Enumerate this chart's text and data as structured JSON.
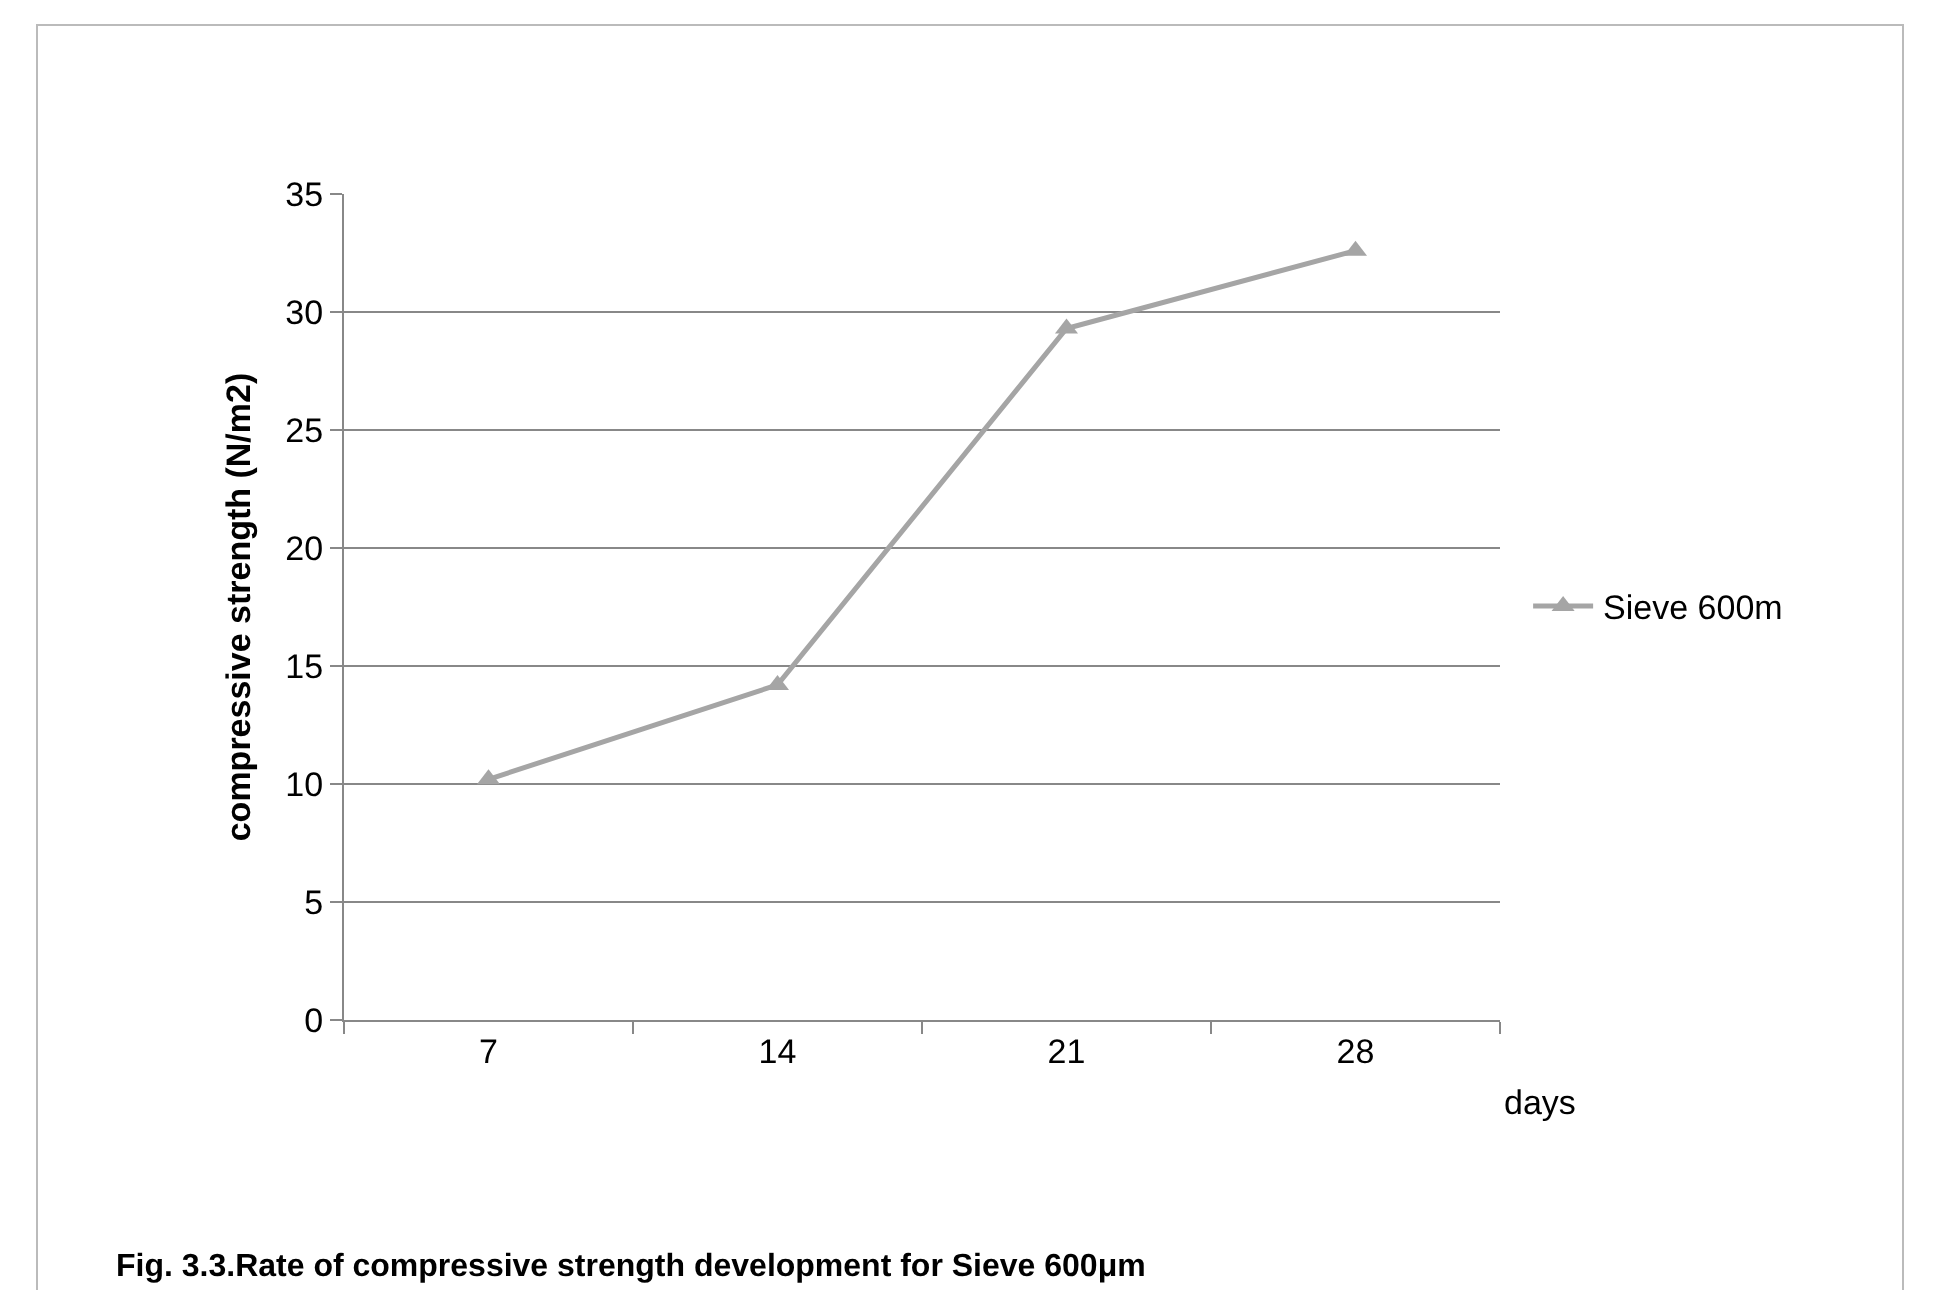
{
  "chart_data": {
    "type": "line",
    "xlabel": "days",
    "ylabel": "compressive strength (N/m2)",
    "categories": [
      "7",
      "14",
      "21",
      "28"
    ],
    "series": [
      {
        "name": "Sieve 600m",
        "color": "#a5a5a5",
        "values": [
          10.2,
          14.2,
          29.3,
          32.6
        ]
      }
    ],
    "ylim": [
      0,
      35
    ],
    "yticks": [
      0,
      5,
      10,
      15,
      20,
      25,
      30,
      35
    ],
    "grid": "y",
    "legend": "right",
    "marker": "triangle",
    "line_style": "solid",
    "annotations": [
      "Fig. 3.3.Rate of compressive strength development for Sieve 600μm"
    ]
  }
}
